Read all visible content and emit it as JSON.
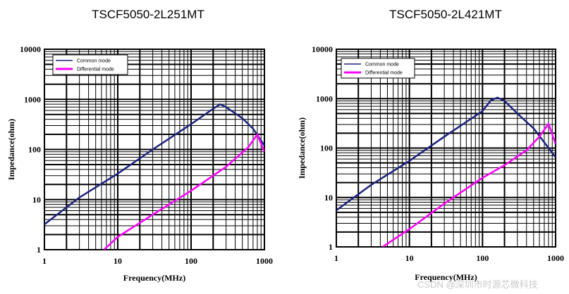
{
  "chart_data": [
    {
      "type": "line",
      "title": "TSCF5050-2L251MT",
      "xlabel": "Frequency(MHz)",
      "ylabel": "Impedance(ohm)",
      "xscale": "log",
      "yscale": "log",
      "xlim": [
        1,
        1000
      ],
      "ylim": [
        1,
        10000
      ],
      "x_ticks": [
        "1",
        "10",
        "100",
        "1000"
      ],
      "y_ticks": [
        "1",
        "10",
        "100",
        "1000",
        "10000"
      ],
      "grid": true,
      "legend_position": "top-left",
      "series": [
        {
          "name": "Common mode",
          "color": "#1a237e",
          "x": [
            1,
            3,
            10,
            30,
            100,
            200,
            250,
            300,
            500,
            700,
            1000
          ],
          "y": [
            3.2,
            11,
            33,
            100,
            320,
            650,
            800,
            700,
            420,
            260,
            120
          ]
        },
        {
          "name": "Differential mode",
          "color": "#ff00ff",
          "x": [
            6.5,
            10,
            30,
            100,
            300,
            600,
            800,
            1000
          ],
          "y": [
            1,
            1.8,
            5,
            15,
            45,
            110,
            200,
            90
          ]
        }
      ]
    },
    {
      "type": "line",
      "title": "TSCF5050-2L421MT",
      "xlabel": "Frequency(MHz)",
      "ylabel": "Impedance(ohm)",
      "xscale": "log",
      "yscale": "log",
      "xlim": [
        1,
        1000
      ],
      "ylim": [
        1,
        10000
      ],
      "x_ticks": [
        "1",
        "10",
        "100",
        "1000"
      ],
      "y_ticks": [
        "1",
        "10",
        "100",
        "1000",
        "10000"
      ],
      "grid": true,
      "legend_position": "top-left",
      "series": [
        {
          "name": "Common mode",
          "color": "#1a237e",
          "x": [
            1,
            3,
            10,
            30,
            100,
            130,
            160,
            200,
            300,
            500,
            1000
          ],
          "y": [
            5.5,
            18,
            55,
            170,
            560,
            920,
            1050,
            900,
            500,
            250,
            65
          ]
        },
        {
          "name": "Differential mode",
          "color": "#ff00ff",
          "x": [
            4.3,
            10,
            30,
            100,
            200,
            400,
            600,
            800,
            1000
          ],
          "y": [
            1,
            2.3,
            7.5,
            25,
            45,
            90,
            170,
            310,
            120
          ]
        }
      ]
    }
  ],
  "watermark": "CSDN @深圳市时源芯微科技"
}
